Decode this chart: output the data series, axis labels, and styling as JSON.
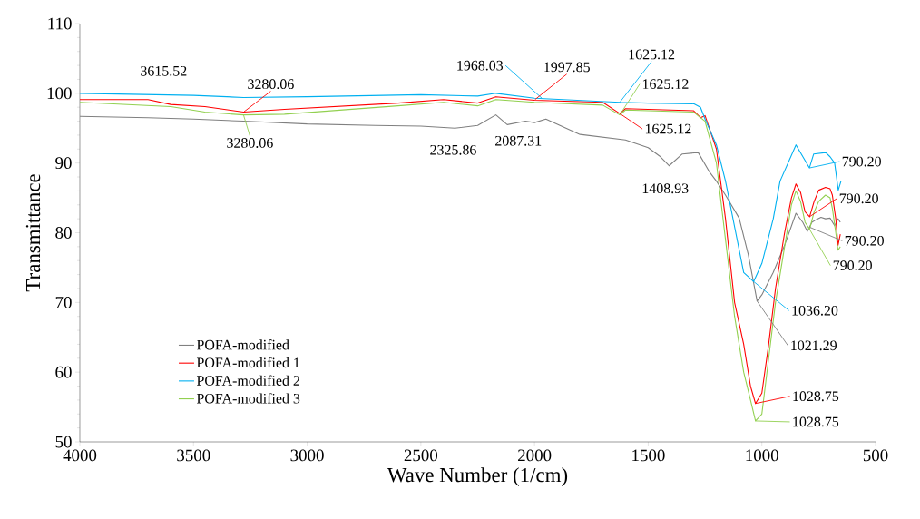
{
  "chart_data": {
    "type": "line",
    "xlabel": "Wave Number (1/cm)",
    "ylabel": "Transmittance",
    "xlim": [
      4000,
      500
    ],
    "xticks": [
      4000,
      3500,
      3000,
      2500,
      2000,
      1500,
      1000,
      500
    ],
    "ylim": [
      50,
      110
    ],
    "yticks": [
      50,
      60,
      70,
      80,
      90,
      100,
      110
    ],
    "grid": false,
    "legend": "bottom left",
    "series": [
      {
        "name": "POFA-modified",
        "color": "#808080",
        "x": [
          4000,
          3700,
          3500,
          3280,
          3000,
          2700,
          2500,
          2350,
          2250,
          2170,
          2120,
          2040,
          2000,
          1950,
          1800,
          1600,
          1500,
          1450,
          1408,
          1350,
          1280,
          1230,
          1200,
          1160,
          1100,
          1060,
          1021,
          1000,
          950,
          900,
          850,
          820,
          800,
          780,
          760,
          740,
          720,
          700,
          680,
          665,
          655
        ],
        "values": [
          96.7,
          96.5,
          96.3,
          96.0,
          95.6,
          95.4,
          95.3,
          95.0,
          95.4,
          96.9,
          95.5,
          96.0,
          95.8,
          96.3,
          94.1,
          93.3,
          92.2,
          91.0,
          89.6,
          91.3,
          91.5,
          88.7,
          87.4,
          85.4,
          82.1,
          76.9,
          70.2,
          71.1,
          74.3,
          78.2,
          82.8,
          81.5,
          80.2,
          81.5,
          81.9,
          82.2,
          82.0,
          82.1,
          81.0,
          82.0,
          81.5
        ]
      },
      {
        "name": "POFA-modified 1",
        "color": "#ff0000",
        "x": [
          4000,
          3700,
          3600,
          3450,
          3280,
          3100,
          2600,
          2400,
          2250,
          2170,
          2000,
          1700,
          1625,
          1600,
          1300,
          1270,
          1250,
          1200,
          1160,
          1120,
          1080,
          1050,
          1028,
          1000,
          970,
          940,
          900,
          870,
          850,
          830,
          810,
          790,
          770,
          750,
          720,
          700,
          690,
          675,
          665,
          655
        ],
        "values": [
          99.1,
          99.1,
          98.4,
          98.1,
          97.3,
          97.7,
          98.6,
          99.1,
          98.6,
          99.5,
          99.0,
          98.7,
          97.1,
          97.8,
          97.5,
          96.5,
          96.8,
          92.0,
          82.0,
          70.0,
          64.0,
          58.0,
          55.5,
          57.0,
          64.0,
          72.0,
          80.0,
          85.0,
          87.0,
          85.8,
          83.0,
          82.3,
          84.5,
          86.1,
          86.5,
          86.3,
          85.4,
          82.0,
          78.2,
          79.8
        ]
      },
      {
        "name": "POFA-modified 2",
        "color": "#00b0f0",
        "x": [
          4000,
          3500,
          3280,
          3000,
          2500,
          2250,
          2170,
          2000,
          1625,
          1500,
          1300,
          1270,
          1250,
          1200,
          1160,
          1080,
          1036,
          1000,
          950,
          920,
          850,
          791,
          772,
          719,
          700,
          680,
          664,
          652
        ],
        "values": [
          100.0,
          99.7,
          99.4,
          99.5,
          99.8,
          99.6,
          100.0,
          99.3,
          98.7,
          98.6,
          98.5,
          98.0,
          96.3,
          92.6,
          87.4,
          74.3,
          73.0,
          75.6,
          82.0,
          87.4,
          92.6,
          89.3,
          91.3,
          91.5,
          90.9,
          90.0,
          86.1,
          87.4
        ]
      },
      {
        "name": "POFA-modified 3",
        "color": "#92d050",
        "x": [
          4000,
          3600,
          3450,
          3280,
          3100,
          2600,
          2400,
          2250,
          2170,
          2000,
          1700,
          1625,
          1600,
          1300,
          1250,
          1200,
          1160,
          1120,
          1080,
          1050,
          1028,
          1000,
          970,
          940,
          900,
          870,
          850,
          830,
          810,
          790,
          770,
          750,
          720,
          700,
          690,
          675,
          665,
          655
        ],
        "values": [
          98.7,
          98.1,
          97.3,
          96.9,
          97.0,
          98.2,
          98.7,
          98.2,
          99.1,
          98.7,
          98.3,
          96.9,
          97.6,
          97.3,
          96.0,
          90.0,
          79.0,
          68.0,
          60.0,
          56.0,
          53.0,
          54.0,
          62.0,
          70.0,
          78.0,
          84.0,
          86.0,
          84.5,
          81.5,
          80.5,
          83.0,
          84.5,
          85.4,
          85.0,
          83.5,
          80.0,
          77.5,
          78.0
        ]
      }
    ],
    "annotations": [
      {
        "text": "3615.52",
        "x": 3615.52,
        "y": 99.8
      },
      {
        "text": "3280.06",
        "x": 3280.06,
        "y": 97.3
      },
      {
        "text": "3280.06",
        "x": 3280.06,
        "y": 96.9
      },
      {
        "text": "2325.86",
        "x": 2325.86,
        "y": 95.0
      },
      {
        "text": "2087.31",
        "x": 2087.31,
        "y": 96.3
      },
      {
        "text": "1968.03",
        "x": 1968.03,
        "y": 99.3
      },
      {
        "text": "1997.85",
        "x": 1997.85,
        "y": 99.1
      },
      {
        "text": "1625.12",
        "x": 1625.12,
        "y": 98.7
      },
      {
        "text": "1625.12",
        "x": 1625.12,
        "y": 96.9
      },
      {
        "text": "1625.12",
        "x": 1625.12,
        "y": 97.1
      },
      {
        "text": "1408.93",
        "x": 1408.93,
        "y": 89.6
      },
      {
        "text": "1036.20",
        "x": 1036.2,
        "y": 73.0
      },
      {
        "text": "1021.29",
        "x": 1021.29,
        "y": 70.2
      },
      {
        "text": "1028.75",
        "x": 1028.75,
        "y": 55.5
      },
      {
        "text": "1028.75",
        "x": 1028.75,
        "y": 53.0
      },
      {
        "text": "790.20",
        "x": 790.2,
        "y": 89.3
      },
      {
        "text": "790.20",
        "x": 790.2,
        "y": 82.3
      },
      {
        "text": "790.20",
        "x": 790.2,
        "y": 80.8
      },
      {
        "text": "790.20",
        "x": 790.2,
        "y": 80.5
      }
    ]
  }
}
